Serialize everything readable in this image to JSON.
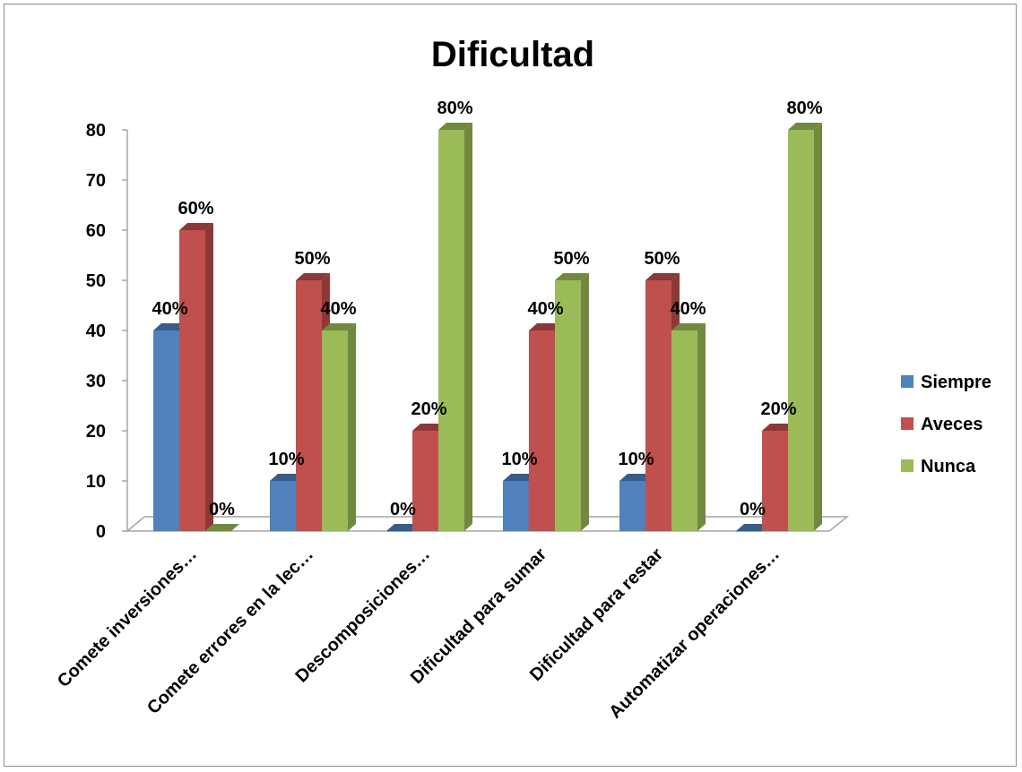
{
  "chart_data": {
    "type": "bar",
    "title": "Dificultad",
    "categories": [
      "Comete inversiones…",
      "Comete errores en la lec…",
      "Descomposiciones…",
      "Dificultad para sumar",
      "Dificultad para restar",
      "Automatizar operaciones…"
    ],
    "series": [
      {
        "name": "Siempre",
        "color": "#4f81bd",
        "side": "#385d8a",
        "values": [
          40,
          10,
          0,
          10,
          10,
          0
        ],
        "labels": [
          "40%",
          "10%",
          "0%",
          "10%",
          "10%",
          "0%"
        ]
      },
      {
        "name": "Aveces",
        "color": "#c0504d",
        "side": "#8c3836",
        "values": [
          60,
          50,
          20,
          40,
          50,
          20
        ],
        "labels": [
          "60%",
          "50%",
          "20%",
          "40%",
          "50%",
          "20%"
        ]
      },
      {
        "name": "Nunca",
        "color": "#9bbb59",
        "side": "#71893f",
        "values": [
          0,
          40,
          80,
          50,
          40,
          80
        ],
        "labels": [
          "0%",
          "40%",
          "80%",
          "50%",
          "40%",
          "80%"
        ]
      }
    ],
    "ylim": [
      0,
      80
    ],
    "yticks": [
      "0",
      "10",
      "20",
      "30",
      "40",
      "50",
      "60",
      "70",
      "80"
    ],
    "legend_position": "right",
    "grid": false
  }
}
